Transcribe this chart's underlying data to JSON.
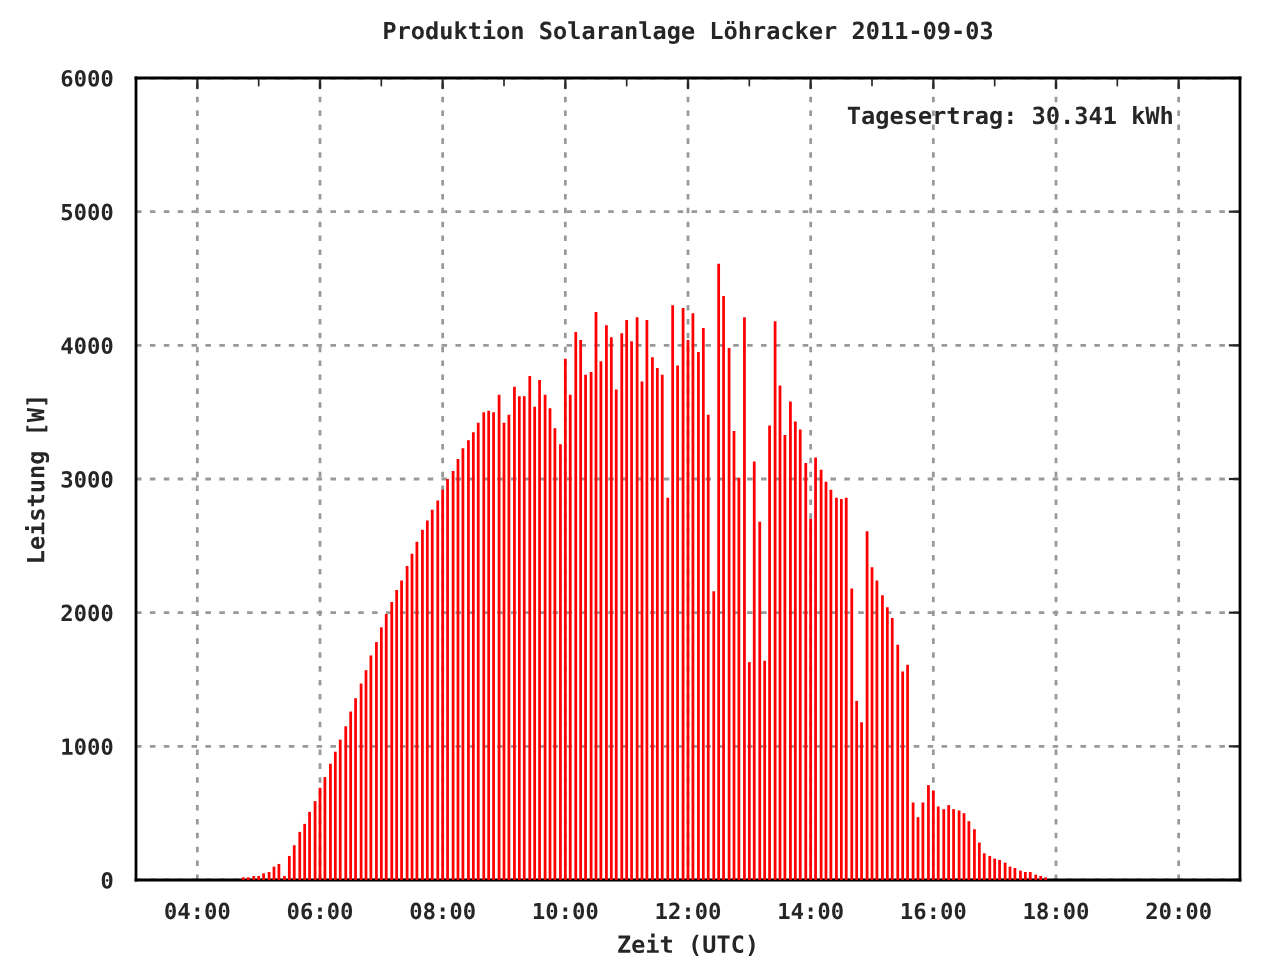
{
  "chart_data": {
    "type": "bar",
    "title": "Produktion Solaranlage Löhracker 2011-09-03",
    "xlabel": "Zeit (UTC)",
    "ylabel": "Leistung [W]",
    "annotations": [
      "Tagesertrag: 30.341 kWh"
    ],
    "color": "#ff0000",
    "x": [
      4.75,
      4.83,
      4.92,
      5,
      5.08,
      5.17,
      5.25,
      5.33,
      5.42,
      5.5,
      5.58,
      5.67,
      5.75,
      5.83,
      5.92,
      6,
      6.08,
      6.17,
      6.25,
      6.33,
      6.42,
      6.5,
      6.58,
      6.67,
      6.75,
      6.83,
      6.92,
      7,
      7.08,
      7.17,
      7.25,
      7.33,
      7.42,
      7.5,
      7.58,
      7.67,
      7.75,
      7.83,
      7.92,
      8,
      8.08,
      8.17,
      8.25,
      8.33,
      8.42,
      8.5,
      8.58,
      8.67,
      8.75,
      8.83,
      8.92,
      9,
      9.08,
      9.17,
      9.25,
      9.33,
      9.42,
      9.5,
      9.58,
      9.67,
      9.75,
      9.83,
      9.92,
      10,
      10.08,
      10.17,
      10.25,
      10.33,
      10.42,
      10.5,
      10.58,
      10.67,
      10.75,
      10.83,
      10.92,
      11,
      11.08,
      11.17,
      11.25,
      11.33,
      11.42,
      11.5,
      11.58,
      11.67,
      11.75,
      11.83,
      11.92,
      12,
      12.08,
      12.17,
      12.25,
      12.33,
      12.42,
      12.5,
      12.58,
      12.67,
      12.75,
      12.83,
      12.92,
      13,
      13.08,
      13.17,
      13.25,
      13.33,
      13.42,
      13.5,
      13.58,
      13.67,
      13.75,
      13.83,
      13.92,
      14,
      14.08,
      14.17,
      14.25,
      14.33,
      14.42,
      14.5,
      14.58,
      14.67,
      14.75,
      14.83,
      14.92,
      15,
      15.08,
      15.17,
      15.25,
      15.33,
      15.42,
      15.5,
      15.58,
      15.67,
      15.75,
      15.83,
      15.92,
      16,
      16.08,
      16.17,
      16.25,
      16.33,
      16.42,
      16.5,
      16.58,
      16.67,
      16.75,
      16.83,
      16.92,
      17,
      17.08,
      17.17,
      17.25,
      17.33,
      17.42,
      17.5,
      17.58,
      17.67,
      17.75,
      17.83
    ],
    "values": [
      20,
      20,
      30,
      30,
      50,
      60,
      100,
      120,
      30,
      180,
      260,
      360,
      420,
      510,
      590,
      690,
      770,
      870,
      960,
      1050,
      1150,
      1260,
      1360,
      1470,
      1570,
      1680,
      1780,
      1890,
      1990,
      2080,
      2170,
      2240,
      2350,
      2440,
      2530,
      2620,
      2690,
      2770,
      2840,
      2920,
      3000,
      3060,
      3150,
      3230,
      3290,
      3350,
      3420,
      3500,
      3510,
      3500,
      3630,
      3420,
      3480,
      3690,
      3620,
      3620,
      3770,
      3540,
      3740,
      3630,
      3530,
      3380,
      3260,
      3900,
      3630,
      4100,
      4040,
      3780,
      3800,
      4250,
      3880,
      4150,
      4060,
      3670,
      4090,
      4190,
      4030,
      4210,
      3730,
      4190,
      3910,
      3830,
      3780,
      2860,
      4300,
      3850,
      4280,
      4040,
      4240,
      3950,
      4130,
      3480,
      2160,
      4610,
      4370,
      3980,
      3360,
      3010,
      4210,
      1630,
      3130,
      2680,
      1640,
      3400,
      4180,
      3700,
      3330,
      3580,
      3430,
      3370,
      3120,
      2700,
      3160,
      3070,
      2980,
      2920,
      2860,
      2850,
      2860,
      2180,
      1340,
      1180,
      2610,
      2340,
      2240,
      2130,
      2040,
      1960,
      1760,
      1560,
      1610,
      580,
      470,
      580,
      710,
      670,
      550,
      530,
      560,
      530,
      520,
      500,
      440,
      380,
      280,
      200,
      180,
      160,
      150,
      130,
      100,
      90,
      70,
      60,
      60,
      40,
      30,
      20
    ],
    "xlim": [
      3,
      21
    ],
    "xticks": [
      {
        "value": 4,
        "label": "04:00"
      },
      {
        "value": 5,
        "label": null
      },
      {
        "value": 6,
        "label": "06:00"
      },
      {
        "value": 7,
        "label": null
      },
      {
        "value": 8,
        "label": "08:00"
      },
      {
        "value": 9,
        "label": null
      },
      {
        "value": 10,
        "label": "10:00"
      },
      {
        "value": 11,
        "label": null
      },
      {
        "value": 12,
        "label": "12:00"
      },
      {
        "value": 13,
        "label": null
      },
      {
        "value": 14,
        "label": "14:00"
      },
      {
        "value": 15,
        "label": null
      },
      {
        "value": 16,
        "label": "16:00"
      },
      {
        "value": 17,
        "label": null
      },
      {
        "value": 18,
        "label": "18:00"
      },
      {
        "value": 19,
        "label": null
      },
      {
        "value": 20,
        "label": "20:00"
      }
    ],
    "ylim": [
      0,
      6000
    ],
    "yticks": [
      0,
      1000,
      2000,
      3000,
      4000,
      5000,
      6000
    ],
    "grid": true
  }
}
